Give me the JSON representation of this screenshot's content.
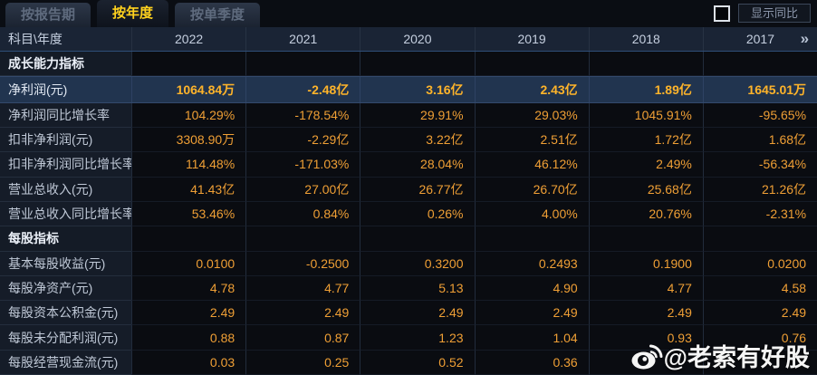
{
  "tabs": [
    {
      "id": "by-report-period",
      "label": "按报告期",
      "active": false
    },
    {
      "id": "by-year",
      "label": "按年度",
      "active": true
    },
    {
      "id": "by-quarter",
      "label": "按单季度",
      "active": false
    }
  ],
  "controls": {
    "show_yoy_label": "显示同比",
    "checkbox_checked": false
  },
  "table": {
    "corner_header": "科目\\年度",
    "year_columns": [
      "2022",
      "2021",
      "2020",
      "2019",
      "2018",
      "2017"
    ],
    "more_icon": "»",
    "rows": [
      {
        "type": "section",
        "label": "成长能力指标",
        "values": [
          "",
          "",
          "",
          "",
          "",
          ""
        ]
      },
      {
        "type": "data",
        "highlight": true,
        "label": "净利润(元)",
        "values": [
          "1064.84万",
          "-2.48亿",
          "3.16亿",
          "2.43亿",
          "1.89亿",
          "1645.01万"
        ]
      },
      {
        "type": "data",
        "label": "净利润同比增长率",
        "values": [
          "104.29%",
          "-178.54%",
          "29.91%",
          "29.03%",
          "1045.91%",
          "-95.65%"
        ]
      },
      {
        "type": "data",
        "label": "扣非净利润(元)",
        "values": [
          "3308.90万",
          "-2.29亿",
          "3.22亿",
          "2.51亿",
          "1.72亿",
          "1.68亿"
        ]
      },
      {
        "type": "data",
        "label": "扣非净利润同比增长率",
        "values": [
          "114.48%",
          "-171.03%",
          "28.04%",
          "46.12%",
          "2.49%",
          "-56.34%"
        ]
      },
      {
        "type": "data",
        "label": "营业总收入(元)",
        "values": [
          "41.43亿",
          "27.00亿",
          "26.77亿",
          "26.70亿",
          "25.68亿",
          "21.26亿"
        ]
      },
      {
        "type": "data",
        "label": "营业总收入同比增长率",
        "values": [
          "53.46%",
          "0.84%",
          "0.26%",
          "4.00%",
          "20.76%",
          "-2.31%"
        ]
      },
      {
        "type": "section",
        "label": "每股指标",
        "values": [
          "",
          "",
          "",
          "",
          "",
          ""
        ]
      },
      {
        "type": "data",
        "label": "基本每股收益(元)",
        "values": [
          "0.0100",
          "-0.2500",
          "0.3200",
          "0.2493",
          "0.1900",
          "0.0200"
        ]
      },
      {
        "type": "data",
        "label": "每股净资产(元)",
        "values": [
          "4.78",
          "4.77",
          "5.13",
          "4.90",
          "4.77",
          "4.58"
        ]
      },
      {
        "type": "data",
        "label": "每股资本公积金(元)",
        "values": [
          "2.49",
          "2.49",
          "2.49",
          "2.49",
          "2.49",
          "2.49"
        ]
      },
      {
        "type": "data",
        "label": "每股未分配利润(元)",
        "values": [
          "0.88",
          "0.87",
          "1.23",
          "1.04",
          "0.93",
          "0.76"
        ]
      },
      {
        "type": "data",
        "label": "每股经营现金流(元)",
        "values": [
          "0.03",
          "0.25",
          "0.52",
          "0.36",
          "",
          ""
        ]
      }
    ]
  },
  "watermark": {
    "icon": "weibo-icon",
    "handle": "@老索有好股"
  },
  "colors": {
    "active_tab_gold": "#ffd21e",
    "value_orange": "#ef9f35",
    "highlight_value_gold": "#ffb42a",
    "highlight_row_bg": "#21344f",
    "header_row_bg": "#1a2435",
    "label_column_bg": "#151c28",
    "cell_bg": "#0a0c11",
    "watermark_white": "#f5f5f5"
  }
}
